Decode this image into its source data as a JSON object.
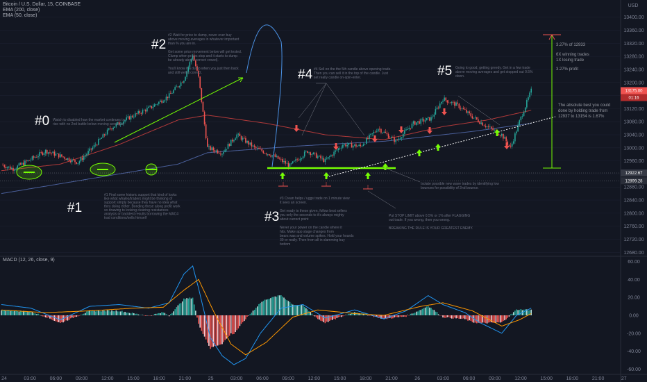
{
  "header": {
    "symbol": "Bitcoin / U.S. Dollar, 15, COINBASE",
    "ema200": "EMA (200, close)",
    "ema50": "EMA (50, close)",
    "currency": "USD"
  },
  "macd_header": "MACD (12, 26, close, 9)",
  "colors": {
    "background": "#131722",
    "candle_up": "#26a69a",
    "candle_down": "#ef5350",
    "ema200": "#2962ff",
    "ema50": "#ef5350",
    "macd_line": "#2196f3",
    "signal_line": "#ff9800",
    "annotation_green": "#76ff03"
  },
  "annotations": {
    "labels": [
      "#0",
      "#1",
      "#2",
      "#3",
      "#4",
      "#5"
    ],
    "note0": [
      "Watch to disabled how the market continues to",
      "rise with no 2nd buttle below moving averages"
    ],
    "note1": [
      "#1 Find some historic support that kind of looks",
      "like what whales/traders might be thinking of",
      "support simply because they have no idea what",
      "they doing either. Bonding these along profit work",
      "so drawing to looking clearing resistances",
      "analysis or backtest results borrowing the MAC4",
      "trad conditions/sells himself"
    ],
    "note2": [
      "#2 Wait for price to dump, never ever buy",
      "above moving averages in whatever important",
      "than % you are in.",
      "",
      "Get some price movement below will get tested.",
      "Clump when prices stop and it starts to dump",
      "be already above correct crowd).",
      "",
      "You'll know if a dump when you just then back",
      "and still well it correct."
    ],
    "note3": [
      "#3 Crean helps / uggs trade on 1 minute view",
      "it sees an screen.",
      "",
      "Get ready to these given, follow best sellers",
      "you only the seconds to it's always mighty",
      "about currect point",
      "",
      "Never your power on the candle where it",
      "hits. Make app stage changes from",
      "bears was and volume spikes. Hold your hoards",
      "30 or really. Then from all in slamming buy",
      "bottom"
    ],
    "note4": [
      "#4 Sell on the the 5th candle above opening trade.",
      "Then you can sell it in the top of the candle. Just",
      "set really candle on-spin-enter."
    ],
    "note5": [
      "Going to good, getting greedy. Get in a few trade",
      "above moving averages and get stopped out 0.5%",
      "down."
    ],
    "note_bounce": [
      "Isolate possible new wave trades by identifying low",
      "bounces for possibility of 2nd bounce."
    ],
    "note_stop": [
      "Put STOP LIMIT above 0.5% or 1% after FLAGGING",
      "out trade. If you wrong, then you wrong.",
      "",
      "BREAKING THE RULE IS YOUR GREATEST ENEMY."
    ],
    "stats": [
      "3.27% of 12933",
      "6X winning trades",
      "1X losing trade",
      "3.27% profit"
    ],
    "best": [
      "The absolute best you could",
      "done by holding trade from",
      "12937 to 13154 is 1.67%"
    ]
  },
  "price_tags": {
    "last": "13175.00",
    "countdown": "01:16",
    "level_a": "12922.67",
    "level_b": "12899.28"
  },
  "chart_data": {
    "type": "candlestick",
    "title": "Bitcoin / U.S. Dollar, 15, COINBASE",
    "price_axis": {
      "ticks": [
        "13400.00",
        "13360.00",
        "13320.00",
        "13280.00",
        "13240.00",
        "13200.00",
        "13160.00",
        "13120.00",
        "13080.00",
        "13040.00",
        "13000.00",
        "12960.00",
        "12920.00",
        "12880.00",
        "12840.00",
        "12800.00",
        "12760.00",
        "12720.00",
        "12680.00"
      ],
      "range": [
        12670,
        13410
      ]
    },
    "macd_axis": {
      "ticks": [
        "60.00",
        "40.00",
        "20.00",
        "0.00",
        "-20.00",
        "-40.00",
        "-60.00"
      ],
      "range": [
        -65,
        65
      ]
    },
    "time_axis": [
      "24",
      "03:00",
      "06:00",
      "09:00",
      "12:00",
      "15:00",
      "18:00",
      "21:00",
      "25",
      "03:00",
      "06:00",
      "09:00",
      "12:00",
      "15:00",
      "18:00",
      "21:00",
      "26",
      "03:00",
      "06:00",
      "09:00",
      "12:00",
      "15:00",
      "18:00",
      "21:00",
      "27"
    ],
    "price_waypoints": [
      [
        0,
        12948
      ],
      [
        8,
        12936
      ],
      [
        18,
        12960
      ],
      [
        30,
        12990
      ],
      [
        40,
        12975
      ],
      [
        52,
        12955
      ],
      [
        62,
        13000
      ],
      [
        74,
        13060
      ],
      [
        88,
        13095
      ],
      [
        102,
        13125
      ],
      [
        114,
        13160
      ],
      [
        124,
        13210
      ],
      [
        130,
        13285
      ],
      [
        134,
        13215
      ],
      [
        140,
        13000
      ],
      [
        150,
        12985
      ],
      [
        160,
        13040
      ],
      [
        172,
        13000
      ],
      [
        185,
        12975
      ],
      [
        196,
        12945
      ],
      [
        208,
        12990
      ],
      [
        220,
        12960
      ],
      [
        232,
        13010
      ],
      [
        244,
        13005
      ],
      [
        256,
        13060
      ],
      [
        268,
        13020
      ],
      [
        280,
        13075
      ],
      [
        292,
        13090
      ],
      [
        300,
        13150
      ],
      [
        310,
        13130
      ],
      [
        320,
        13095
      ],
      [
        330,
        13065
      ],
      [
        340,
        13040
      ],
      [
        346,
        13000
      ],
      [
        352,
        13080
      ],
      [
        360,
        13175
      ]
    ],
    "ema200_waypoints": [
      [
        0,
        12860
      ],
      [
        60,
        12905
      ],
      [
        120,
        12950
      ],
      [
        140,
        12985
      ],
      [
        200,
        13005
      ],
      [
        260,
        13020
      ],
      [
        320,
        13050
      ],
      [
        360,
        13075
      ]
    ],
    "ema50_waypoints": [
      [
        0,
        12930
      ],
      [
        40,
        12950
      ],
      [
        80,
        13010
      ],
      [
        120,
        13085
      ],
      [
        140,
        13100
      ],
      [
        180,
        13075
      ],
      [
        220,
        13040
      ],
      [
        260,
        13025
      ],
      [
        300,
        13065
      ],
      [
        330,
        13085
      ],
      [
        360,
        13115
      ]
    ],
    "macd_waypoints": [
      [
        0,
        12
      ],
      [
        20,
        8
      ],
      [
        40,
        -5
      ],
      [
        60,
        10
      ],
      [
        80,
        12
      ],
      [
        100,
        8
      ],
      [
        114,
        14
      ],
      [
        124,
        46
      ],
      [
        130,
        55
      ],
      [
        134,
        30
      ],
      [
        142,
        -25
      ],
      [
        150,
        -45
      ],
      [
        158,
        -55
      ],
      [
        166,
        -48
      ],
      [
        176,
        -20
      ],
      [
        190,
        8
      ],
      [
        205,
        12
      ],
      [
        220,
        -3
      ],
      [
        240,
        6
      ],
      [
        260,
        -4
      ],
      [
        275,
        5
      ],
      [
        290,
        22
      ],
      [
        300,
        12
      ],
      [
        315,
        3
      ],
      [
        325,
        -8
      ],
      [
        340,
        -20
      ],
      [
        350,
        0
      ],
      [
        360,
        8
      ]
    ],
    "signal_waypoints": [
      [
        0,
        6
      ],
      [
        30,
        3
      ],
      [
        60,
        5
      ],
      [
        90,
        8
      ],
      [
        110,
        9
      ],
      [
        124,
        28
      ],
      [
        134,
        40
      ],
      [
        144,
        5
      ],
      [
        156,
        -32
      ],
      [
        166,
        -44
      ],
      [
        180,
        -30
      ],
      [
        198,
        -2
      ],
      [
        215,
        6
      ],
      [
        240,
        2
      ],
      [
        260,
        0
      ],
      [
        285,
        10
      ],
      [
        300,
        14
      ],
      [
        320,
        5
      ],
      [
        340,
        -12
      ],
      [
        352,
        -5
      ],
      [
        360,
        2
      ]
    ],
    "levels": [
      12923,
      12899
    ]
  }
}
